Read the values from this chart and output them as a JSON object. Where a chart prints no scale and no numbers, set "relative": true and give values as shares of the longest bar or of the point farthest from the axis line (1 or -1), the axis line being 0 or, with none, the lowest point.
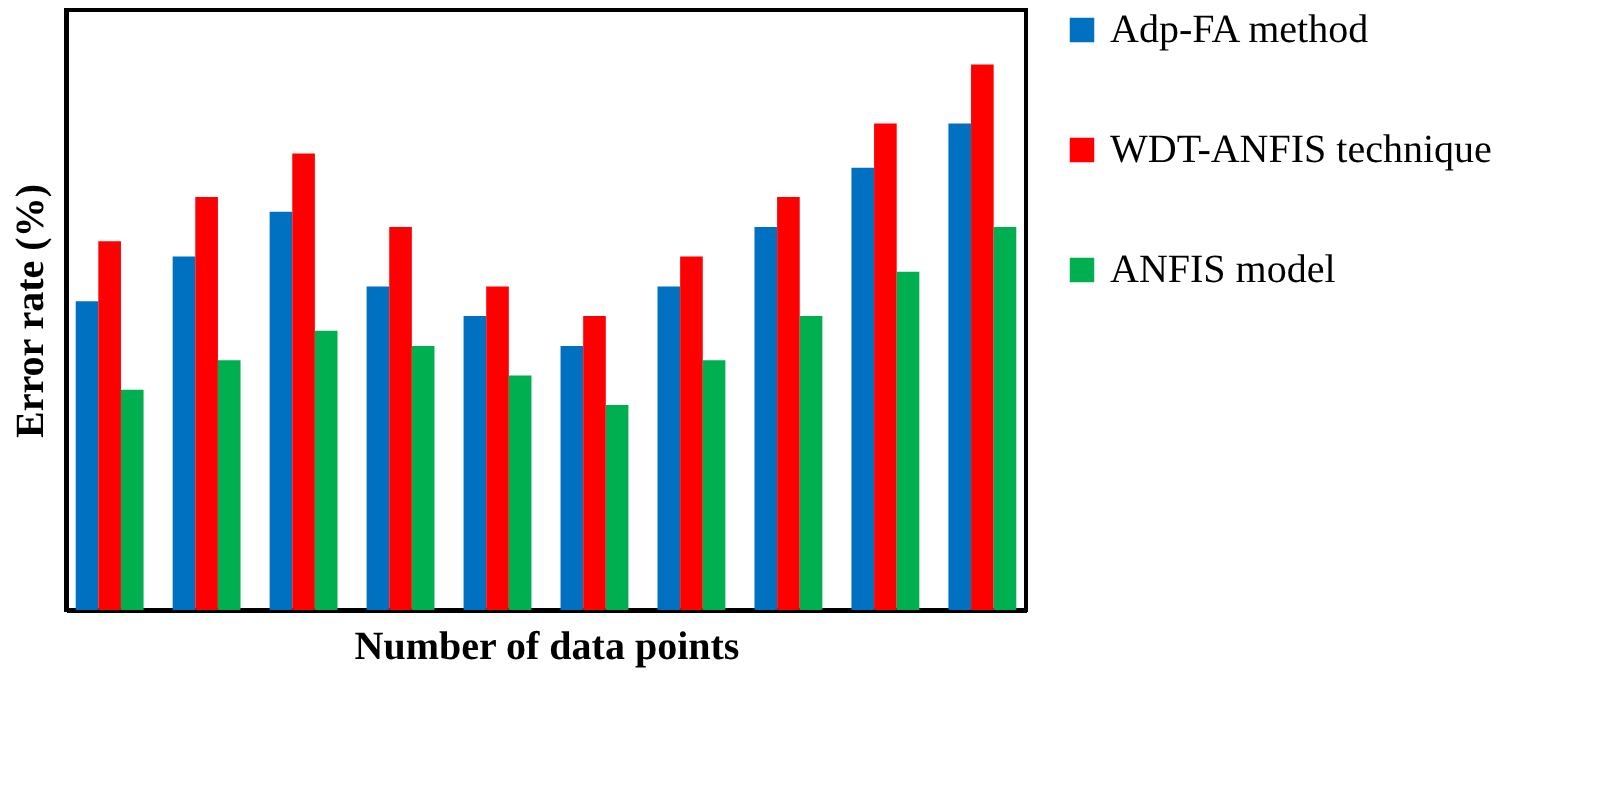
{
  "chart_data": {
    "type": "bar",
    "relative": true,
    "xlabel": "Number of data points",
    "ylabel": "Error  rate (%)",
    "categories": [
      null,
      null,
      null,
      null,
      null,
      null,
      null,
      null,
      null,
      null
    ],
    "legend": "right",
    "tick_labels": false,
    "grid": false,
    "series": [
      {
        "name": "Adp-FA method",
        "color": "#0070c0",
        "values": [
          0.566,
          0.648,
          0.73,
          0.593,
          0.539,
          0.484,
          0.593,
          0.702,
          0.811,
          0.892
        ]
      },
      {
        "name": "WDT-ANFIS technique",
        "color": "#ff0000",
        "values": [
          0.676,
          0.757,
          0.837,
          0.702,
          0.593,
          0.539,
          0.648,
          0.757,
          0.892,
          1
        ]
      },
      {
        "name": "ANFIS model",
        "color": "#00b050",
        "values": [
          0.404,
          0.458,
          0.512,
          0.484,
          0.43,
          0.376,
          0.458,
          0.539,
          0.62,
          0.702
        ]
      }
    ]
  }
}
